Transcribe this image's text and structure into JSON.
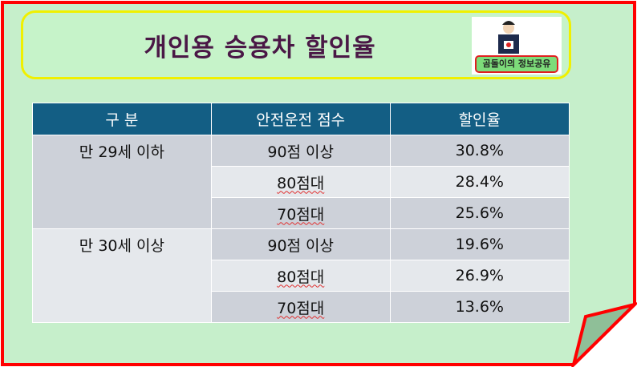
{
  "title": "개인용 승용차 할인율",
  "logo": {
    "label": "곰돌이의 정보공유"
  },
  "colors": {
    "background": "#c6efcb",
    "border": "#ff0000",
    "header": "#135e84",
    "title": "#4a1846"
  },
  "table": {
    "headers": [
      "구 분",
      "안전운전 점수",
      "할인율"
    ],
    "groups": [
      {
        "label": "만 29세 이하",
        "rows": [
          {
            "score": "90점 이상",
            "rate": "30.8%"
          },
          {
            "score": "80점대",
            "rate": "28.4%"
          },
          {
            "score": "70점대",
            "rate": "25.6%"
          }
        ]
      },
      {
        "label": "만 30세 이상",
        "rows": [
          {
            "score": "90점 이상",
            "rate": "19.6%"
          },
          {
            "score": "80점대",
            "rate": "26.9%"
          },
          {
            "score": "70점대",
            "rate": "13.6%"
          }
        ]
      }
    ]
  }
}
